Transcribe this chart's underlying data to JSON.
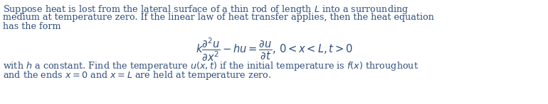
{
  "figsize": [
    7.7,
    1.47
  ],
  "dpi": 100,
  "bg_color": "#ffffff",
  "text_color": "#2e4d7a",
  "font_size": 9.2,
  "eq_font_size": 10.5,
  "paragraph1_line1": "Suppose heat is lost from the lateral surface of a thin rod of length $L$ into a surrounding",
  "paragraph1_line2": "medium at temperature zero. If the linear law of heat transfer applies, then the heat equation",
  "paragraph1_line3": "has the form",
  "equation": "$k\\dfrac{\\partial^2 u}{\\partial x^2} - hu = \\dfrac{\\partial u}{\\partial t},\\, 0 < x < L, t > 0$",
  "paragraph2_line1": "with $h$ a constant. Find the temperature $u(x, t)$ if the initial temperature is $f(x)$ throughout",
  "paragraph2_line2": "and the ends $x = 0$ and $x = L$ are held at temperature zero."
}
